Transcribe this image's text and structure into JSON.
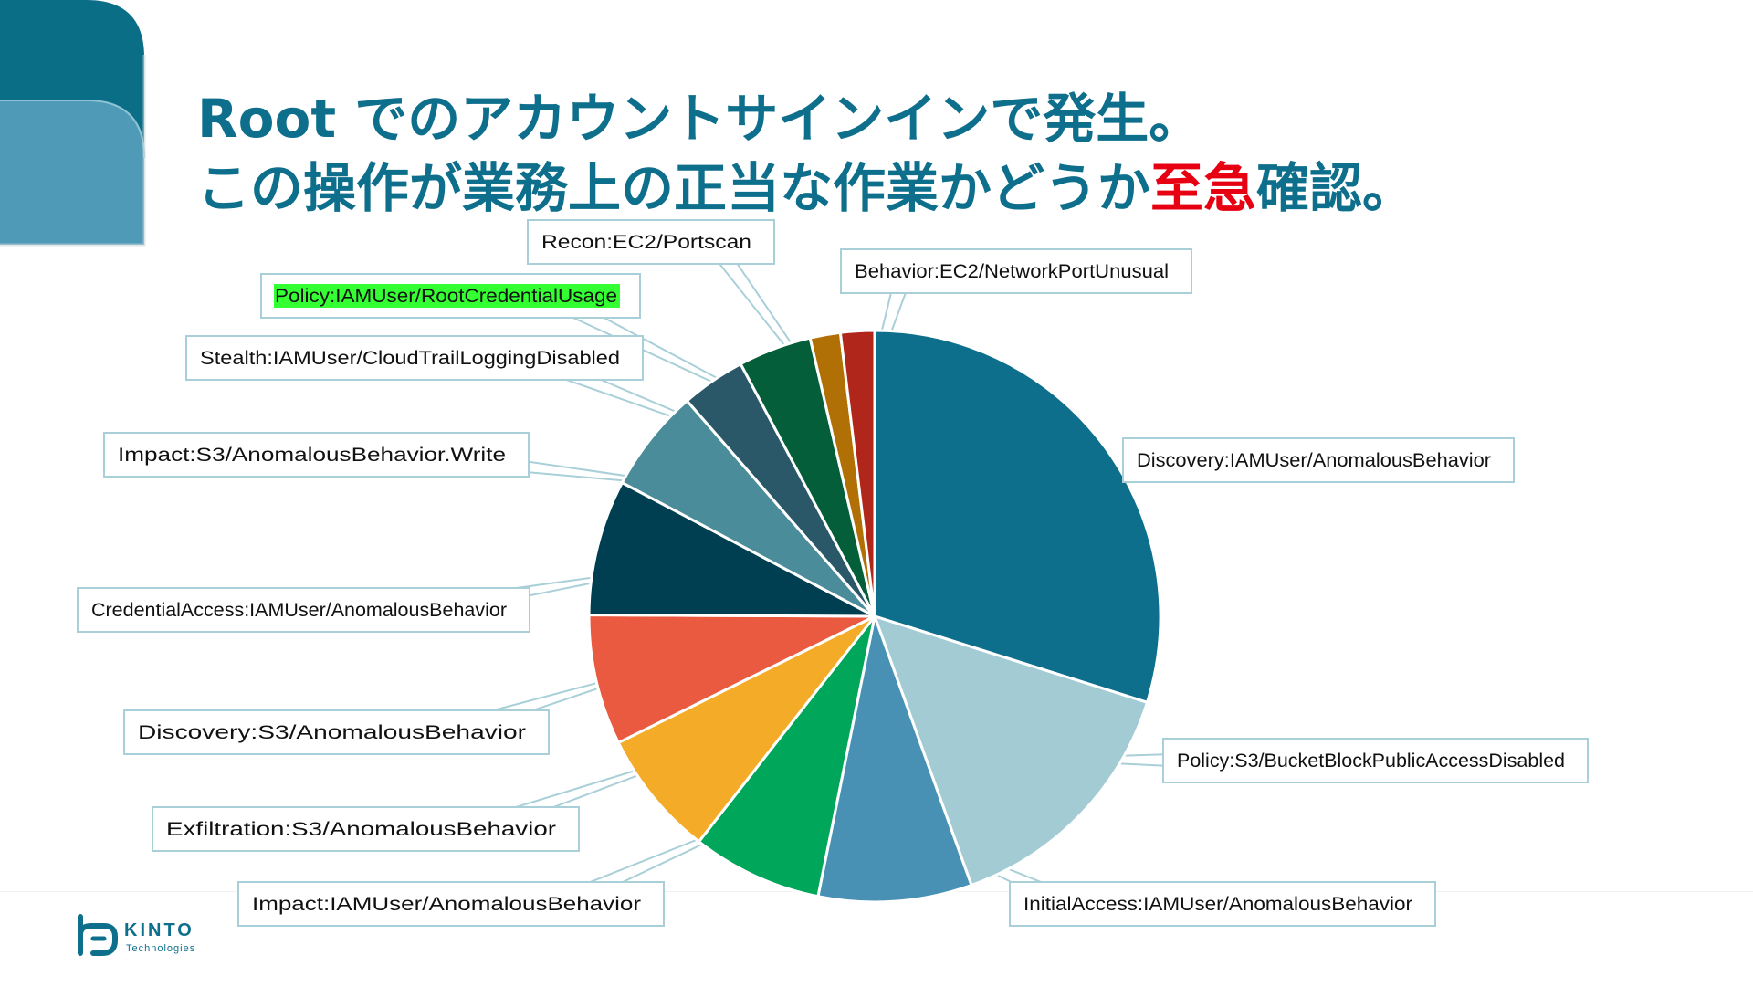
{
  "slide": {
    "title_line1": "Root でのアカウントサインインで発生。",
    "title_line2_pre": "この操作が業務上の正当な作業かどうか",
    "title_line2_urgent": "至急",
    "title_line2_post": "確認。",
    "urgent_color": "#e60012",
    "title_color": "#0e6f8c"
  },
  "logo": {
    "word": "KINTO",
    "sub": "Technologies"
  },
  "chart_data": {
    "type": "pie",
    "start_angle_deg": 0,
    "direction": "clockwise",
    "highlighted_label": "Policy:IAMUser/RootCredentialUsage",
    "highlight_color": "#33ff33",
    "slices": [
      {
        "label": "Discovery:IAMUser/AnomalousBehavior",
        "percent": 29.6,
        "color": "#0e6f8c"
      },
      {
        "label": "Policy:S3/BucketBlockPublicAccessDisabled",
        "percent": 14.5,
        "color": "#a3cbd4"
      },
      {
        "label": "InitialAccess:IAMUser/AnomalousBehavior",
        "percent": 8.6,
        "color": "#4891b4"
      },
      {
        "label": "Impact:IAMUser/AnomalousBehavior",
        "percent": 7.3,
        "color": "#00a65a"
      },
      {
        "label": "Exfiltration:S3/AnomalousBehavior",
        "percent": 7.1,
        "color": "#f4ac28"
      },
      {
        "label": "Discovery:S3/AnomalousBehavior",
        "percent": 7.3,
        "color": "#ea5a40"
      },
      {
        "label": "CredentialAccess:IAMUser/AnomalousBehavior",
        "percent": 7.6,
        "color": "#003f52"
      },
      {
        "label": "Impact:S3/AnomalousBehavior.Write",
        "percent": 5.8,
        "color": "#4a8c99"
      },
      {
        "label": "Stealth:IAMUser/CloudTrailLoggingDisabled",
        "percent": 3.6,
        "color": "#2a5868"
      },
      {
        "label": "Policy:IAMUser/RootCredentialUsage",
        "percent": 4.1,
        "color": "#045e3a"
      },
      {
        "label": "Recon:EC2/Portscan",
        "percent": 1.7,
        "color": "#b07006"
      },
      {
        "label": "Behavior:EC2/NetworkPortUnusual",
        "percent": 1.9,
        "color": "#b0261a"
      }
    ]
  }
}
